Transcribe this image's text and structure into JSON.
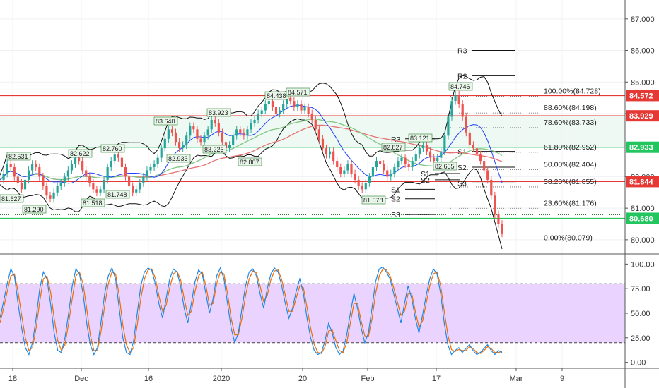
{
  "chart_data": {
    "type": "line",
    "price_axis": {
      "ticks": [
        "87.000",
        "86.000",
        "85.000",
        "84.000",
        "83.000",
        "82.000",
        "81.000",
        "80.000"
      ],
      "ylim": [
        79.55,
        87.6
      ]
    },
    "x_axis": {
      "ticks": [
        "18",
        "Dec",
        "16",
        "2020",
        "20",
        "Feb",
        "17",
        "Mar",
        "9"
      ]
    },
    "horizontal_levels": [
      {
        "value": 84.572,
        "label": "84.572",
        "color": "#e53935"
      },
      {
        "value": 83.929,
        "label": "83.929",
        "color": "#e53935"
      },
      {
        "value": 82.933,
        "label": "82.933",
        "color": "#22c55e"
      },
      {
        "value": 81.844,
        "label": "81.844",
        "color": "#e53935"
      },
      {
        "value": 80.68,
        "label": "80.680",
        "color": "#22c55e"
      }
    ],
    "fibonacci": [
      {
        "label": "100.00%(84.728)",
        "value": 84.728
      },
      {
        "label": "88.60%(84.198)",
        "value": 84.198
      },
      {
        "label": "78.60%(83.733)",
        "value": 83.733
      },
      {
        "label": "61.80%(82.952)",
        "value": 82.952
      },
      {
        "label": "50.00%(82.404)",
        "value": 82.404
      },
      {
        "label": "38.20%(81.855)",
        "value": 81.855
      },
      {
        "label": "23.60%(81.176)",
        "value": 81.176
      },
      {
        "label": "0.00%(80.079)",
        "value": 80.079
      }
    ],
    "pivots": [
      {
        "label": "R3",
        "value": 86.0
      },
      {
        "label": "R2",
        "value": 85.2
      },
      {
        "label": "S1",
        "value": 82.8
      },
      {
        "label": "S2",
        "value": 82.3
      },
      {
        "label": "S3",
        "value": 81.8
      },
      {
        "label": "R3",
        "value": 83.2
      },
      {
        "label": "S1",
        "value": 81.6
      },
      {
        "label": "S2",
        "value": 81.3
      },
      {
        "label": "S3",
        "value": 80.8
      },
      {
        "label": "S1",
        "value": 82.1
      },
      {
        "label": "S2",
        "value": 81.9
      }
    ],
    "peak_labels": [
      "82.531",
      "81.627",
      "81.290",
      "82.622",
      "82.760",
      "81.518",
      "81.748",
      "83.640",
      "82.933",
      "83.923",
      "83.226",
      "82.807",
      "84.438",
      "84.571",
      "81.578",
      "82.827",
      "83.121",
      "82.655",
      "84.746"
    ],
    "price_series": [
      81.9,
      82.1,
      82.4,
      82.3,
      82.0,
      81.8,
      81.6,
      81.9,
      82.2,
      82.4,
      82.3,
      82.0,
      81.7,
      81.4,
      81.3,
      81.5,
      81.7,
      81.8,
      82.0,
      82.2,
      82.4,
      82.6,
      82.5,
      82.2,
      82.0,
      81.8,
      81.6,
      81.5,
      81.6,
      81.9,
      82.3,
      82.5,
      82.7,
      82.6,
      82.3,
      82.0,
      81.7,
      81.5,
      81.6,
      81.8,
      82.0,
      82.2,
      82.3,
      82.4,
      82.6,
      82.9,
      83.2,
      83.5,
      83.4,
      83.1,
      82.9,
      83.0,
      83.3,
      83.6,
      83.5,
      83.2,
      83.1,
      83.3,
      83.5,
      83.8,
      83.7,
      83.4,
      83.1,
      82.9,
      83.0,
      83.3,
      83.5,
      83.4,
      83.3,
      83.5,
      83.7,
      83.8,
      84.0,
      84.1,
      84.3,
      84.4,
      84.2,
      84.0,
      84.1,
      84.3,
      84.5,
      84.4,
      84.2,
      84.3,
      84.1,
      84.2,
      84.0,
      83.8,
      83.5,
      83.2,
      82.9,
      82.7,
      82.8,
      82.5,
      82.3,
      82.1,
      82.2,
      82.4,
      82.1,
      81.9,
      81.7,
      81.6,
      81.8,
      82.0,
      82.3,
      82.5,
      82.4,
      82.2,
      82.0,
      82.1,
      82.3,
      82.5,
      82.6,
      82.4,
      82.3,
      82.5,
      82.7,
      82.9,
      83.0,
      82.8,
      82.6,
      82.5,
      82.6,
      82.8,
      83.3,
      83.9,
      84.4,
      84.6,
      84.3,
      83.9,
      83.4,
      83.0,
      82.9,
      82.7,
      82.5,
      82.2,
      81.9,
      81.4,
      80.8,
      80.5,
      80.2
    ],
    "oscillator_axis": {
      "ticks": [
        "100.00",
        "75.00",
        "50.00",
        "25.00",
        "0.00"
      ],
      "ylim": [
        -6,
        106
      ],
      "band": [
        20,
        80
      ]
    },
    "oscillator_k": [
      45,
      62,
      80,
      95,
      88,
      60,
      35,
      15,
      8,
      20,
      45,
      75,
      92,
      85,
      60,
      30,
      12,
      10,
      25,
      50,
      78,
      95,
      90,
      70,
      40,
      18,
      8,
      15,
      42,
      70,
      88,
      96,
      85,
      55,
      25,
      10,
      8,
      22,
      50,
      78,
      92,
      96,
      94,
      80,
      60,
      45,
      65,
      85,
      95,
      92,
      78,
      55,
      40,
      60,
      82,
      94,
      90,
      70,
      50,
      65,
      88,
      96,
      85,
      60,
      35,
      20,
      30,
      55,
      78,
      92,
      95,
      88,
      70,
      55,
      75,
      90,
      96,
      92,
      78,
      60,
      45,
      55,
      72,
      85,
      70,
      45,
      25,
      12,
      8,
      10,
      22,
      40,
      30,
      15,
      8,
      12,
      28,
      50,
      70,
      55,
      35,
      20,
      30,
      55,
      82,
      95,
      97,
      92,
      85,
      70,
      55,
      40,
      60,
      78,
      65,
      45,
      30,
      48,
      68,
      85,
      95,
      90,
      70,
      40,
      18,
      8,
      12,
      15,
      10,
      14,
      18,
      12,
      8,
      10,
      14,
      18,
      12,
      8,
      12,
      10
    ],
    "oscillator_d": [
      40,
      55,
      72,
      88,
      90,
      72,
      48,
      25,
      12,
      15,
      35,
      62,
      85,
      88,
      72,
      45,
      22,
      12,
      18,
      40,
      65,
      88,
      92,
      80,
      55,
      28,
      12,
      12,
      32,
      58,
      80,
      92,
      90,
      68,
      38,
      18,
      10,
      15,
      38,
      65,
      85,
      94,
      95,
      86,
      68,
      52,
      58,
      76,
      90,
      93,
      84,
      65,
      48,
      52,
      72,
      88,
      92,
      78,
      58,
      60,
      80,
      92,
      90,
      70,
      45,
      28,
      28,
      45,
      68,
      85,
      93,
      91,
      78,
      62,
      68,
      84,
      93,
      94,
      84,
      68,
      52,
      52,
      65,
      78,
      76,
      56,
      35,
      18,
      10,
      9,
      16,
      32,
      33,
      22,
      12,
      10,
      20,
      40,
      60,
      60,
      42,
      27,
      26,
      44,
      70,
      88,
      95,
      94,
      88,
      76,
      62,
      48,
      52,
      70,
      70,
      52,
      36,
      42,
      60,
      78,
      90,
      92,
      78,
      52,
      28,
      13,
      11,
      13,
      12,
      12,
      16,
      14,
      10,
      9,
      12,
      16,
      14,
      10,
      10,
      11
    ]
  }
}
